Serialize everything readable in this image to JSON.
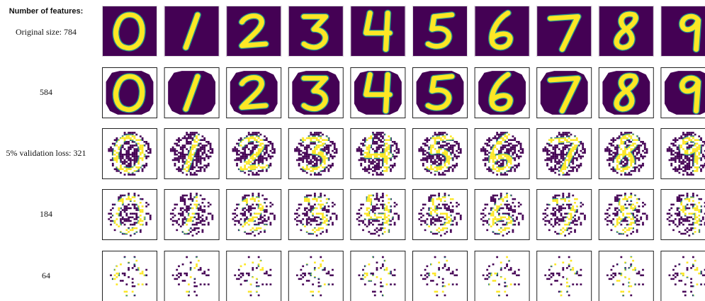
{
  "header": "Number of features:",
  "rows": [
    {
      "label": "Original size: 784"
    },
    {
      "label": "584"
    },
    {
      "label": "5% validation loss: 321"
    },
    {
      "label": "184"
    },
    {
      "label": "64"
    }
  ]
}
